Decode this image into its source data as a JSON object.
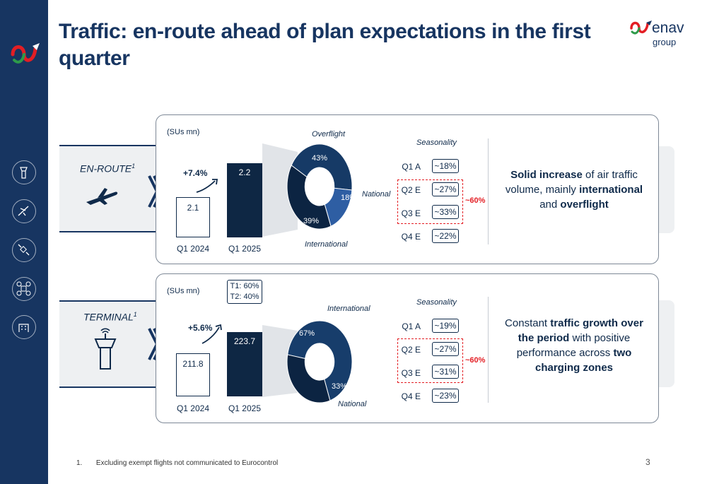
{
  "title": "Traffic: en-route ahead of plan expectations in the first quarter",
  "brand": {
    "word": "enav",
    "sub": "group"
  },
  "footnote": {
    "number": "1.",
    "text": "Excluding exempt flights not communicated to Eurocontrol"
  },
  "page_number": "3",
  "sidebar": {
    "icons": [
      "control-tower-icon",
      "plane-icon",
      "satellite-icon",
      "drone-icon",
      "building-icon"
    ]
  },
  "colors": {
    "navy": "#0e2744",
    "mid_blue": "#1f4e8c",
    "accent_red": "#e31e24"
  },
  "enroute": {
    "label": "EN-ROUTE",
    "sup": "1",
    "icon": "airplane-icon",
    "description_parts": [
      {
        "text": "Solid increase",
        "bold": true
      },
      {
        "text": " of air traffic volume, mainly ",
        "bold": false
      },
      {
        "text": "international",
        "bold": true
      },
      {
        "text": " and ",
        "bold": false
      },
      {
        "text": "overflight",
        "bold": true
      }
    ]
  },
  "terminal": {
    "label": "TERMINAL",
    "sup": "1",
    "icon": "control-tower-icon",
    "tbox": [
      "T1: 60%",
      "T2: 40%"
    ],
    "description_parts": [
      {
        "text": "Constant ",
        "bold": false
      },
      {
        "text": "traffic growth over the period",
        "bold": true
      },
      {
        "text": " with positive performance across ",
        "bold": false
      },
      {
        "text": "two charging zones",
        "bold": true
      }
    ]
  },
  "chart_data": [
    {
      "type": "bar",
      "panel": "enroute",
      "unit_label": "(SUs mn)",
      "categories": [
        "Q1 2024",
        "Q1 2025"
      ],
      "values": [
        2.1,
        2.2
      ],
      "value_labels": [
        "2.1",
        "2.2"
      ],
      "growth_label": "+7.4%"
    },
    {
      "type": "pie",
      "panel": "enroute",
      "slices": [
        {
          "name": "Overflight",
          "value": 43,
          "label": "43%",
          "color": "#163a66"
        },
        {
          "name": "National",
          "value": 18,
          "label": "18%",
          "color": "#2e5ea3"
        },
        {
          "name": "International",
          "value": 39,
          "label": "39%",
          "color": "#0c2442"
        }
      ]
    },
    {
      "type": "table",
      "panel": "enroute",
      "title": "Seasonality",
      "rows": [
        {
          "quarter": "Q1 A",
          "value": "~18%"
        },
        {
          "quarter": "Q2 E",
          "value": "~27%"
        },
        {
          "quarter": "Q3 E",
          "value": "~33%"
        },
        {
          "quarter": "Q4 E",
          "value": "~22%"
        }
      ],
      "bracket_label": "~60%"
    },
    {
      "type": "bar",
      "panel": "terminal",
      "unit_label": "(SUs mn)",
      "categories": [
        "Q1 2024",
        "Q1 2025"
      ],
      "values": [
        211.8,
        223.7
      ],
      "value_labels": [
        "211.8",
        "223.7"
      ],
      "growth_label": "+5.6%"
    },
    {
      "type": "pie",
      "panel": "terminal",
      "slices": [
        {
          "name": "International",
          "value": 67,
          "label": "67%",
          "color": "#173d6b"
        },
        {
          "name": "National",
          "value": 33,
          "label": "33%",
          "color": "#0c2442"
        }
      ]
    },
    {
      "type": "table",
      "panel": "terminal",
      "title": "Seasonality",
      "rows": [
        {
          "quarter": "Q1 A",
          "value": "~19%"
        },
        {
          "quarter": "Q2 E",
          "value": "~27%"
        },
        {
          "quarter": "Q3 E",
          "value": "~31%"
        },
        {
          "quarter": "Q4 E",
          "value": "~23%"
        }
      ],
      "bracket_label": "~60%"
    }
  ]
}
